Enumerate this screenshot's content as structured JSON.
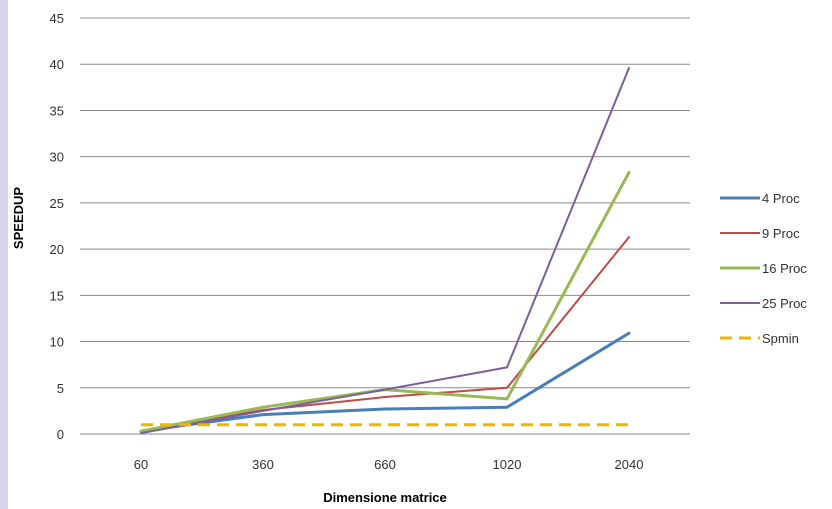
{
  "chart_data": {
    "type": "line",
    "title": "",
    "xlabel": "Dimensione matrice",
    "ylabel": "SPEEDUP",
    "categories": [
      "60",
      "360",
      "660",
      "1020",
      "2040"
    ],
    "ylim": [
      0,
      45
    ],
    "yticks": [
      0,
      5,
      10,
      15,
      20,
      25,
      30,
      35,
      40,
      45
    ],
    "grid": "horizontal",
    "legend_position": "right",
    "series": [
      {
        "name": "4 Proc",
        "values": [
          0.3,
          2.1,
          2.7,
          2.9,
          10.9
        ],
        "color": "#4a7ebb",
        "dashed": false,
        "width": 3
      },
      {
        "name": "9 Proc",
        "values": [
          0.3,
          2.6,
          4.0,
          5.0,
          21.3
        ],
        "color": "#be4b48",
        "dashed": false,
        "width": 2
      },
      {
        "name": "16 Proc",
        "values": [
          0.3,
          2.9,
          4.8,
          3.8,
          28.3
        ],
        "color": "#98b954",
        "dashed": false,
        "width": 3
      },
      {
        "name": "25 Proc",
        "values": [
          0.1,
          2.5,
          4.8,
          7.2,
          39.6
        ],
        "color": "#7d5fa0",
        "dashed": false,
        "width": 2
      },
      {
        "name": "Spmin",
        "values": [
          1,
          1,
          1,
          1,
          1
        ],
        "color": "#f2b400",
        "dashed": true,
        "width": 3
      }
    ]
  }
}
